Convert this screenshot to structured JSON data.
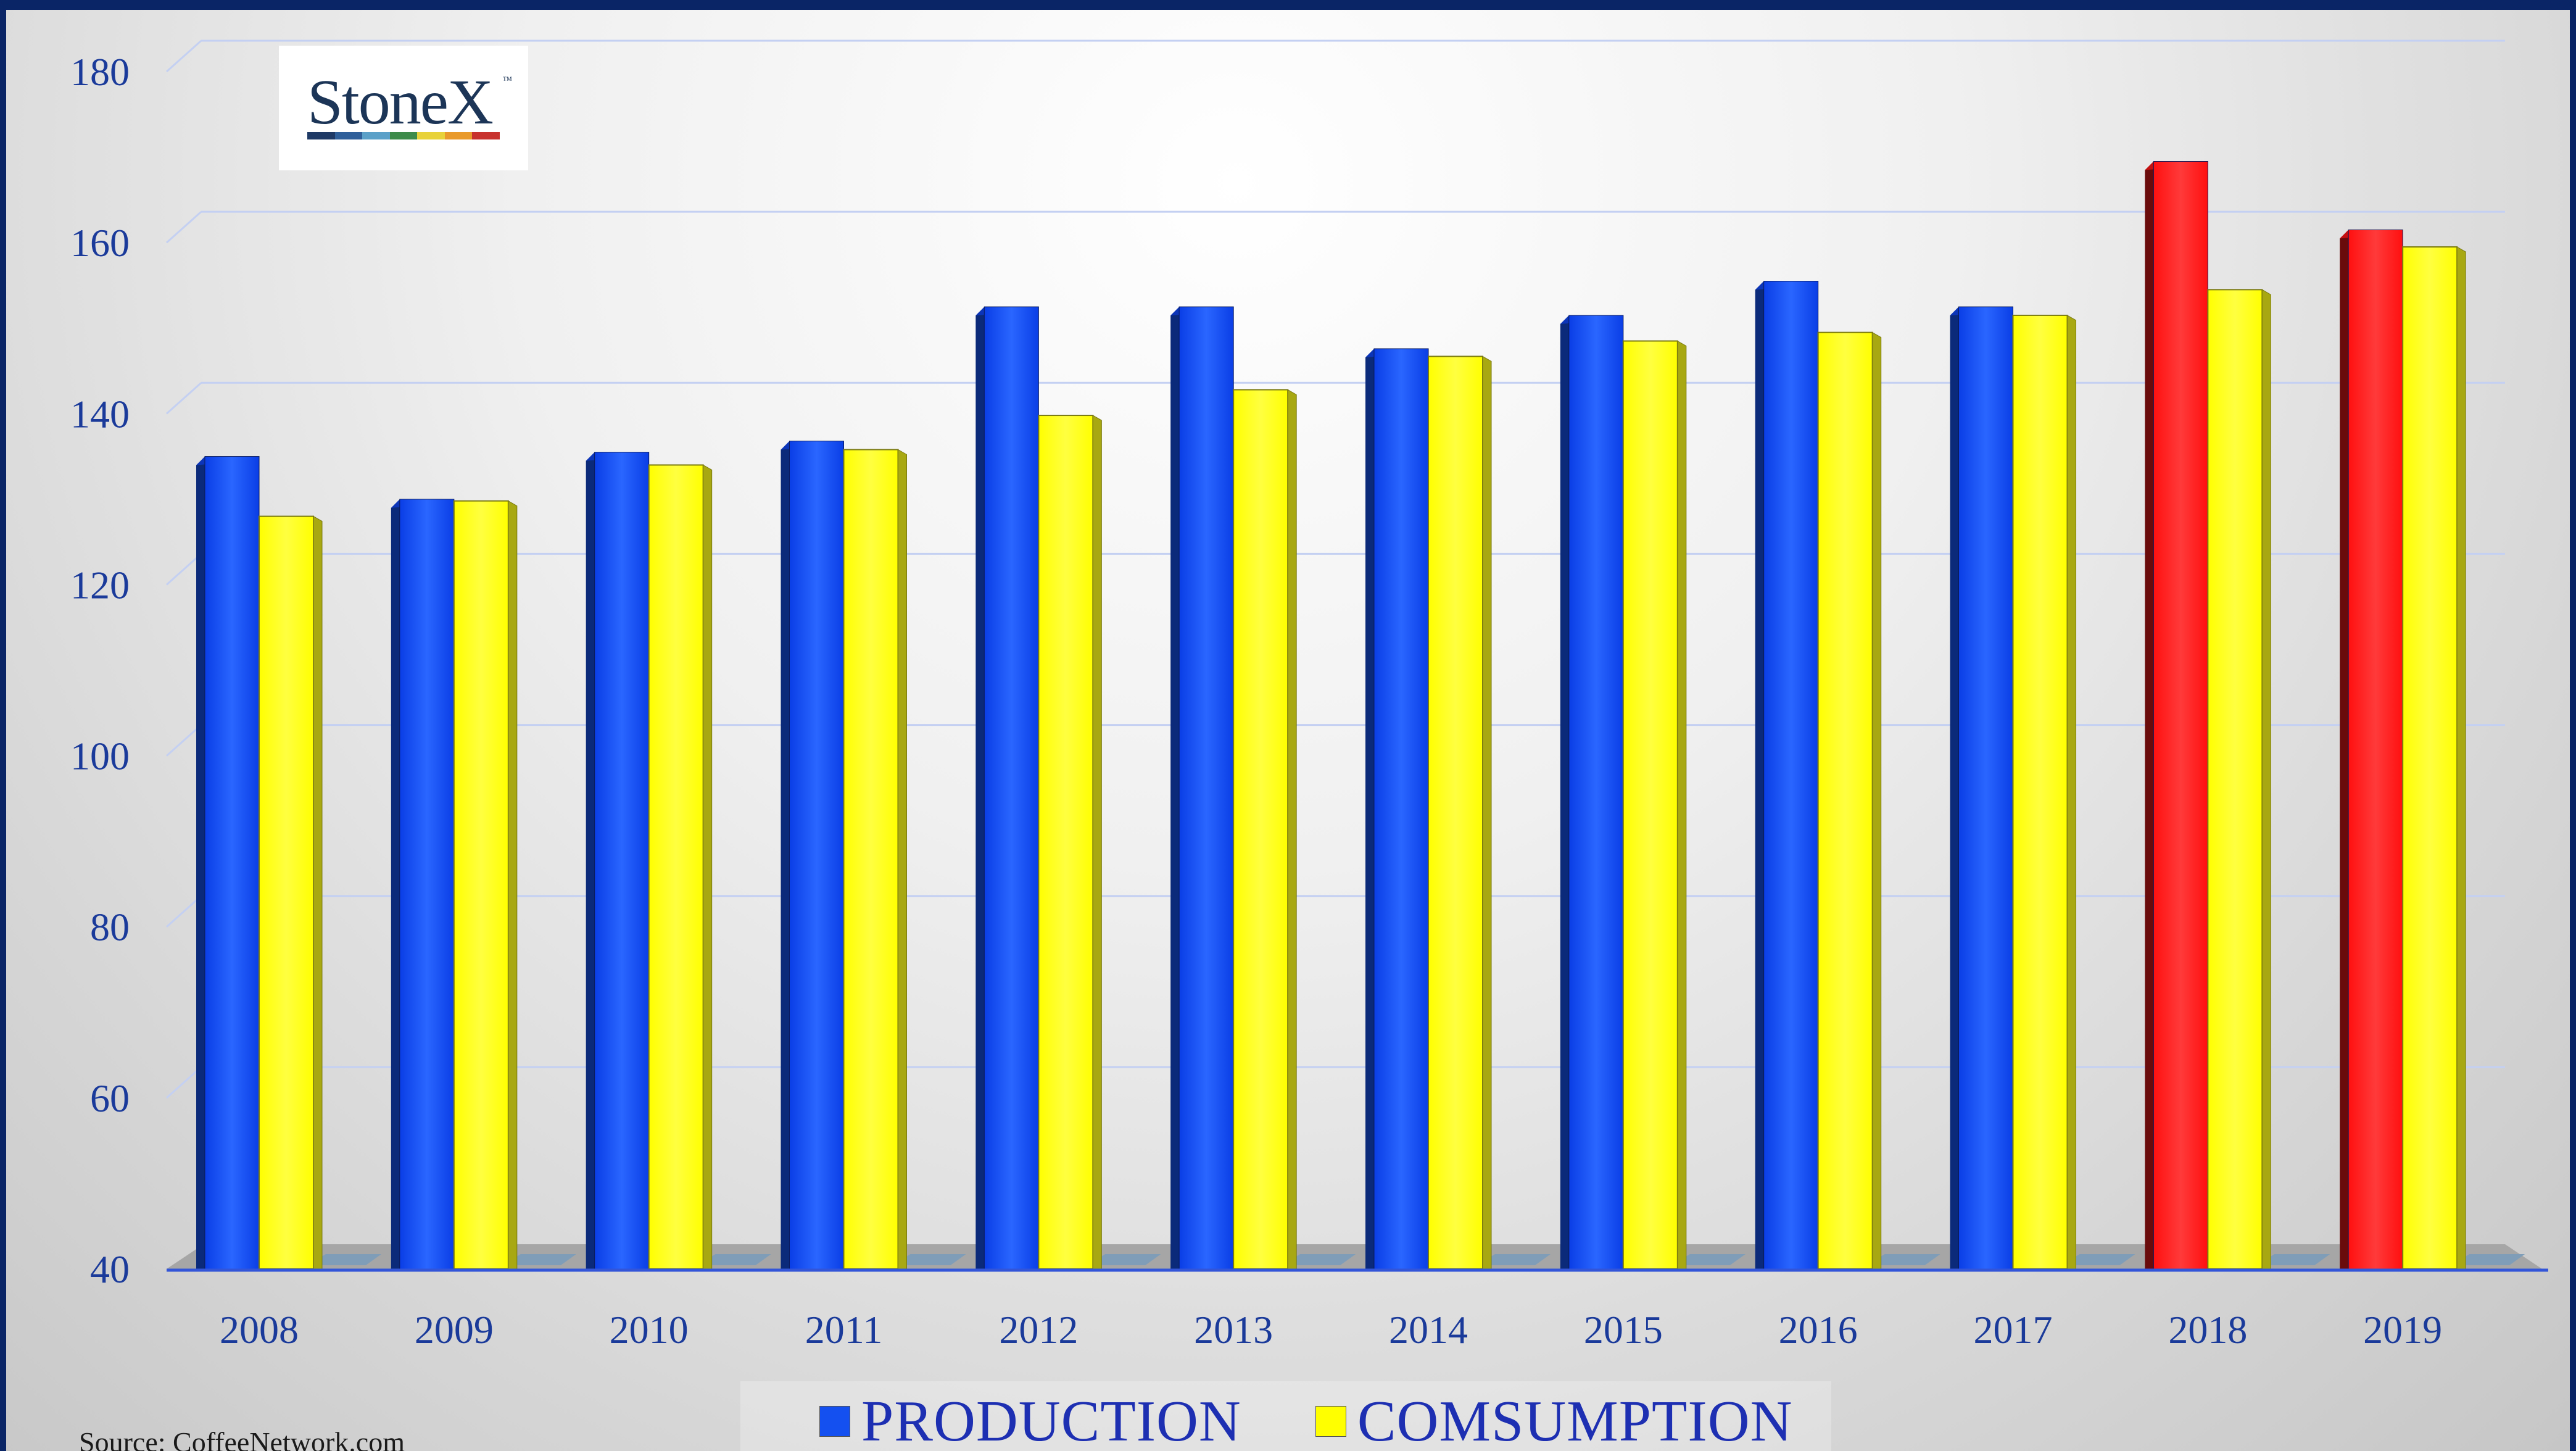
{
  "chart_data": {
    "type": "bar",
    "categories": [
      "2008",
      "2009",
      "2010",
      "2011",
      "2012",
      "2013",
      "2014",
      "2015",
      "2016",
      "2017",
      "2018",
      "2019"
    ],
    "series": [
      {
        "name": "PRODUCTION",
        "values": [
          135,
          130,
          135.5,
          136.8,
          152.5,
          152.5,
          147.6,
          151.5,
          155.5,
          152.5,
          169.5,
          161.5
        ],
        "color": "#1450f0",
        "highlight_color": "#ff1a1a",
        "highlight_categories": [
          "2018",
          "2019"
        ]
      },
      {
        "name": "COMSUMPTION",
        "values": [
          128,
          129.8,
          134,
          135.8,
          139.8,
          142.8,
          146.7,
          148.5,
          149.5,
          151.5,
          154.5,
          159.5
        ],
        "color": "#ffff00"
      }
    ],
    "yticks": [
      40,
      60,
      80,
      100,
      120,
      140,
      160,
      180
    ],
    "ylim": [
      40,
      180
    ],
    "grid": true,
    "legend": "bottom-center",
    "style": "3d-bars"
  },
  "logo": {
    "text": "StoneX",
    "tm": "™",
    "stripe_colors": [
      "#1f3a66",
      "#2f5f9a",
      "#5aa0c8",
      "#3d8b4a",
      "#e8d23a",
      "#e99a2b",
      "#c8322e"
    ]
  },
  "legend": {
    "production_label": "PRODUCTION",
    "consumption_label": "COMSUMPTION",
    "production_color": "#1450f0",
    "consumption_color": "#ffff00"
  },
  "source": "Source:  CoffeeNetwork.com"
}
